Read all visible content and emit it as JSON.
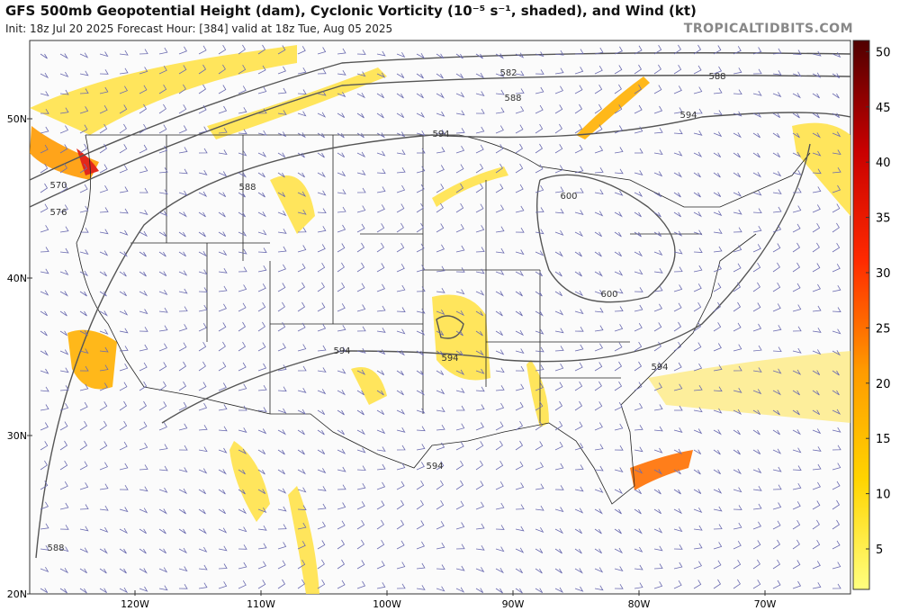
{
  "header": {
    "title": "GFS 500mb Geopotential Height (dam), Cyclonic Vorticity (10⁻⁵ s⁻¹, shaded), and Wind (kt)",
    "subtitle": "Init: 18z Jul 20 2025   Forecast Hour: [384]   valid at 18z Tue, Aug 05 2025",
    "source": "TROPICALTIDBITS.COM"
  },
  "map": {
    "lat_labels": [
      "50N",
      "40N",
      "30N",
      "20N"
    ],
    "lon_labels": [
      "120W",
      "110W",
      "100W",
      "90W",
      "80W",
      "70W"
    ],
    "contour_labels": [
      "582",
      "588",
      "594",
      "588",
      "594",
      "570",
      "576",
      "588",
      "600",
      "600",
      "594",
      "594",
      "594",
      "594",
      "588"
    ]
  },
  "colorbar": {
    "labels": [
      "5",
      "10",
      "15",
      "20",
      "25",
      "30",
      "35",
      "40",
      "45",
      "50"
    ]
  }
}
